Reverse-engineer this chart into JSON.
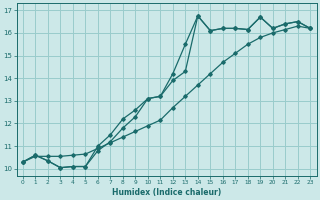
{
  "xlabel": "Humidex (Indice chaleur)",
  "bg_color": "#cce8e8",
  "grid_color": "#99cccc",
  "line_color": "#1a6b6b",
  "xlim": [
    -0.5,
    23.5
  ],
  "ylim": [
    9.7,
    17.3
  ],
  "xticks": [
    0,
    1,
    2,
    3,
    4,
    5,
    6,
    7,
    8,
    9,
    10,
    11,
    12,
    13,
    14,
    15,
    16,
    17,
    18,
    19,
    20,
    21,
    22,
    23
  ],
  "yticks": [
    10,
    11,
    12,
    13,
    14,
    15,
    16,
    17
  ],
  "line1_x": [
    0,
    1,
    2,
    3,
    4,
    5,
    6,
    7,
    8,
    9,
    10,
    11,
    12,
    13,
    14,
    15,
    16,
    17,
    18,
    19,
    20,
    21,
    22,
    23
  ],
  "line1_y": [
    10.3,
    10.6,
    10.35,
    10.05,
    10.1,
    10.1,
    11.0,
    11.5,
    12.2,
    12.6,
    13.1,
    13.2,
    14.2,
    15.5,
    16.75,
    16.1,
    16.2,
    16.2,
    16.15,
    16.7,
    16.2,
    16.4,
    16.5,
    16.2
  ],
  "line2_x": [
    0,
    1,
    2,
    3,
    4,
    5,
    6,
    7,
    8,
    9,
    10,
    11,
    12,
    13,
    14,
    15,
    16,
    17,
    18,
    19,
    20,
    21,
    22,
    23
  ],
  "line2_y": [
    10.3,
    10.6,
    10.35,
    10.05,
    10.1,
    10.1,
    10.8,
    11.2,
    11.8,
    12.3,
    13.1,
    13.2,
    13.9,
    14.3,
    16.75,
    16.1,
    16.2,
    16.2,
    16.15,
    16.7,
    16.2,
    16.4,
    16.5,
    16.2
  ],
  "line3_x": [
    0,
    1,
    2,
    3,
    4,
    5,
    6,
    7,
    8,
    9,
    10,
    11,
    12,
    13,
    14,
    15,
    16,
    17,
    18,
    19,
    20,
    21,
    22,
    23
  ],
  "line3_y": [
    10.3,
    10.55,
    10.55,
    10.55,
    10.6,
    10.65,
    10.9,
    11.15,
    11.4,
    11.65,
    11.9,
    12.15,
    12.7,
    13.2,
    13.7,
    14.2,
    14.7,
    15.1,
    15.5,
    15.8,
    16.0,
    16.15,
    16.3,
    16.2
  ]
}
